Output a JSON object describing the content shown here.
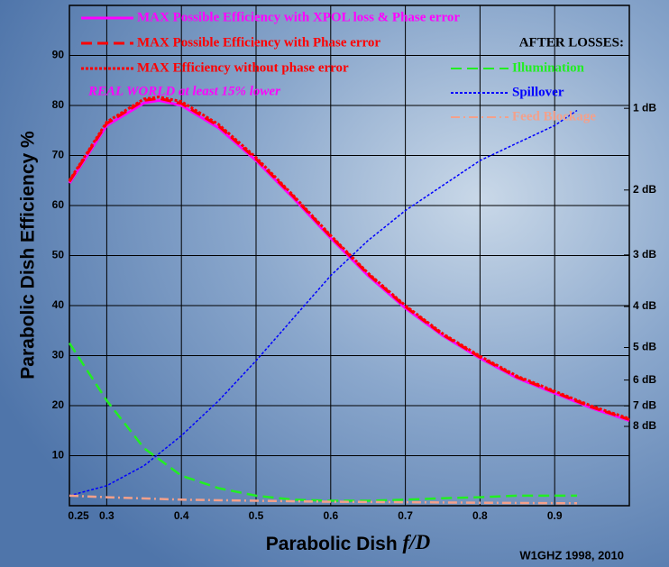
{
  "chart_data": {
    "type": "line",
    "title": null,
    "xlabel": "Parabolic Dish ",
    "xlabel_italic": "f/D",
    "ylabel": "Parabolic Dish Efficiency %",
    "legend_title": "AFTER LOSSES:",
    "annotation": "REAL WORLD at least 15% lower",
    "credit": "W1GHZ 1998, 2010",
    "grid": true,
    "xlim": [
      0.25,
      1.0
    ],
    "ylim": [
      0,
      100
    ],
    "y2lim": [
      0,
      100
    ],
    "xticks": [
      0.25,
      0.3,
      0.4,
      0.5,
      0.6,
      0.7,
      0.8,
      0.9
    ],
    "yticks": [
      10,
      20,
      30,
      40,
      50,
      60,
      70,
      80,
      90
    ],
    "y2ticks": [
      {
        "value": 79.43,
        "label": "1 dB"
      },
      {
        "value": 63.1,
        "label": "2 dB"
      },
      {
        "value": 50.12,
        "label": "3 dB"
      },
      {
        "value": 39.81,
        "label": "4 dB"
      },
      {
        "value": 31.62,
        "label": "5 dB"
      },
      {
        "value": 25.12,
        "label": "6 dB"
      },
      {
        "value": 19.95,
        "label": "7 dB"
      },
      {
        "value": 15.85,
        "label": "8 dB"
      }
    ],
    "series": [
      {
        "name": "MAX Possible Efficiency with XPOL loss & Phase error",
        "color": "#ff00ff",
        "style": "solid",
        "x": [
          0.25,
          0.3,
          0.35,
          0.37,
          0.4,
          0.45,
          0.5,
          0.55,
          0.6,
          0.65,
          0.7,
          0.75,
          0.8,
          0.85,
          0.9,
          0.95,
          1.0
        ],
        "values": [
          64.5,
          76,
          80.5,
          81,
          80,
          75.5,
          69,
          61.5,
          53.5,
          46,
          39.5,
          34,
          29.5,
          25.5,
          22.5,
          19.5,
          17
        ]
      },
      {
        "name": "MAX Possible Efficiency with Phase error",
        "color": "#ff0000",
        "style": "dashed",
        "x": [
          0.25,
          0.3,
          0.35,
          0.37,
          0.4,
          0.45,
          0.5,
          0.55,
          0.6,
          0.65,
          0.7,
          0.75,
          0.8,
          0.85,
          0.9,
          0.95,
          1.0
        ],
        "values": [
          64.8,
          76.4,
          81,
          81.4,
          80.4,
          75.9,
          69.3,
          61.8,
          53.8,
          46.3,
          39.8,
          34.2,
          29.7,
          25.7,
          22.7,
          19.7,
          17.2
        ]
      },
      {
        "name": "MAX Efficiency without phase error",
        "color": "#ff0000",
        "style": "dotted",
        "x": [
          0.25,
          0.3,
          0.35,
          0.37,
          0.4,
          0.45,
          0.5,
          0.55,
          0.6,
          0.65,
          0.7,
          0.75,
          0.8,
          0.85,
          0.9,
          0.95,
          1.0
        ],
        "values": [
          65,
          76.7,
          81.3,
          81.7,
          80.8,
          76.2,
          69.6,
          62,
          54,
          46.5,
          40,
          34.4,
          29.9,
          25.9,
          22.9,
          19.9,
          17.4
        ]
      },
      {
        "name": "Illumination",
        "color": "#22ee22",
        "style": "dashed",
        "x": [
          0.25,
          0.3,
          0.35,
          0.4,
          0.45,
          0.5,
          0.55,
          0.6,
          0.65,
          0.7,
          0.75,
          0.8,
          0.85,
          0.9,
          0.93
        ],
        "values": [
          32.5,
          21,
          11.5,
          6,
          3.5,
          2,
          1.2,
          1,
          1,
          1.2,
          1.5,
          1.7,
          2,
          2,
          2
        ]
      },
      {
        "name": "Spillover",
        "color": "#0000ff",
        "style": "dotted",
        "x": [
          0.25,
          0.3,
          0.35,
          0.4,
          0.45,
          0.5,
          0.55,
          0.6,
          0.65,
          0.7,
          0.75,
          0.8,
          0.85,
          0.9,
          0.93
        ],
        "values": [
          2,
          4,
          8,
          14,
          21,
          29,
          37.5,
          46,
          53,
          59,
          64,
          69,
          72.5,
          76,
          79
        ]
      },
      {
        "name": "Feed Blockage",
        "color": "#f4a08a",
        "style": "dashdot",
        "x": [
          0.25,
          0.3,
          0.4,
          0.5,
          0.6,
          0.7,
          0.8,
          0.9,
          0.93
        ],
        "values": [
          2,
          1.7,
          1.2,
          1,
          0.8,
          0.7,
          0.6,
          0.5,
          0.5
        ]
      }
    ]
  }
}
